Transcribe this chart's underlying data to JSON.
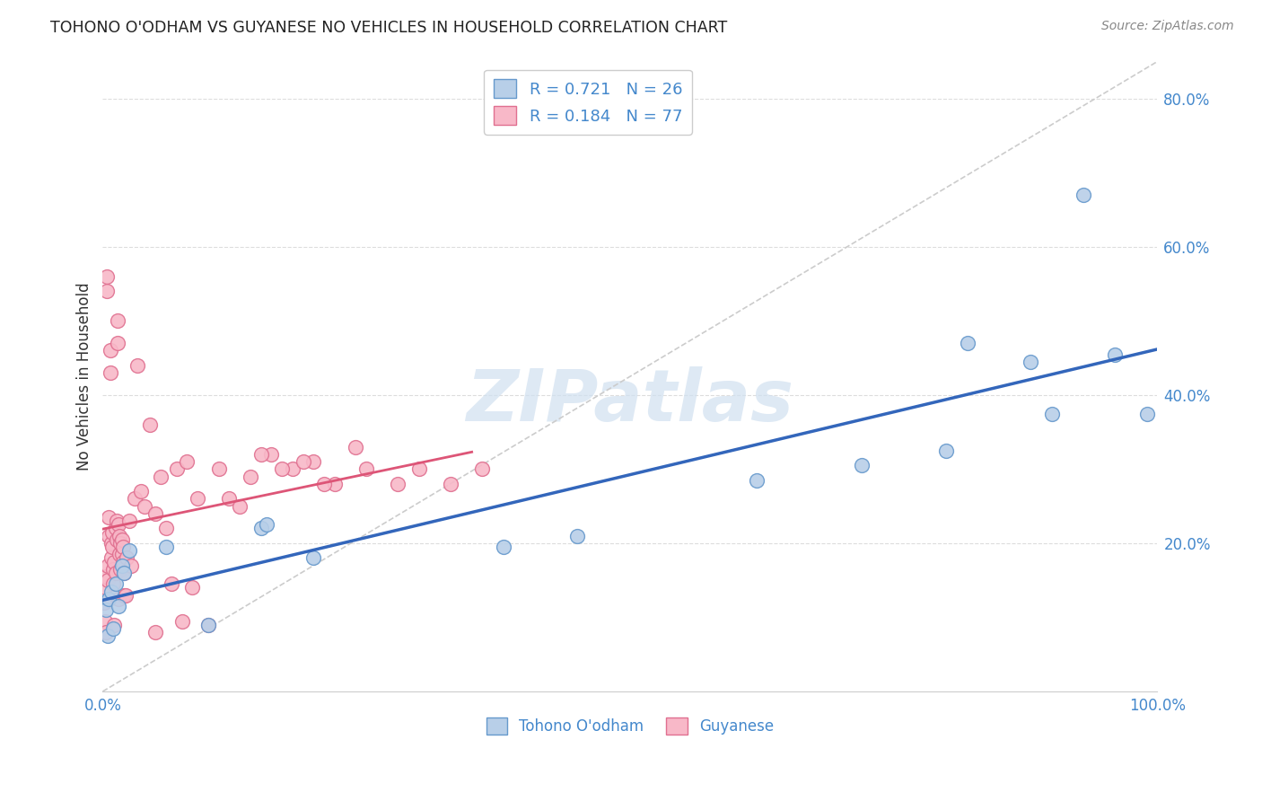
{
  "title": "TOHONO O'ODHAM VS GUYANESE NO VEHICLES IN HOUSEHOLD CORRELATION CHART",
  "source": "Source: ZipAtlas.com",
  "ylabel": "No Vehicles in Household",
  "xlim": [
    0.0,
    1.0
  ],
  "ylim": [
    0.0,
    0.85
  ],
  "xticks": [
    0.0,
    0.25,
    0.5,
    0.75,
    1.0
  ],
  "xtick_labels": [
    "0.0%",
    "",
    "",
    "",
    "100.0%"
  ],
  "yticks": [
    0.2,
    0.4,
    0.6,
    0.8
  ],
  "ytick_labels": [
    "20.0%",
    "40.0%",
    "60.0%",
    "80.0%"
  ],
  "background_color": "#ffffff",
  "grid_color": "#dddddd",
  "blue_scatter_face": "#b8cfe8",
  "blue_scatter_edge": "#6699cc",
  "pink_scatter_face": "#f8b8c8",
  "pink_scatter_edge": "#e07090",
  "blue_line_color": "#3366bb",
  "pink_line_color": "#dd5577",
  "diag_line_color": "#cccccc",
  "R_blue": 0.721,
  "N_blue": 26,
  "R_pink": 0.184,
  "N_pink": 77,
  "legend_label_blue": "Tohono O'odham",
  "legend_label_pink": "Guyanese",
  "title_color": "#222222",
  "tick_color": "#4488cc",
  "watermark_color": "#d0e0f0",
  "tohono_x": [
    0.003,
    0.005,
    0.006,
    0.008,
    0.01,
    0.012,
    0.015,
    0.018,
    0.02,
    0.025,
    0.06,
    0.1,
    0.15,
    0.155,
    0.2,
    0.45,
    0.62,
    0.72,
    0.8,
    0.82,
    0.88,
    0.9,
    0.93,
    0.96,
    0.99,
    0.38
  ],
  "tohono_y": [
    0.11,
    0.075,
    0.125,
    0.135,
    0.085,
    0.145,
    0.115,
    0.17,
    0.16,
    0.19,
    0.195,
    0.09,
    0.22,
    0.225,
    0.18,
    0.21,
    0.285,
    0.305,
    0.325,
    0.47,
    0.445,
    0.375,
    0.67,
    0.455,
    0.375,
    0.195
  ],
  "guyanese_x": [
    0.001,
    0.002,
    0.002,
    0.003,
    0.003,
    0.004,
    0.004,
    0.005,
    0.005,
    0.006,
    0.006,
    0.007,
    0.007,
    0.008,
    0.008,
    0.009,
    0.009,
    0.01,
    0.01,
    0.011,
    0.011,
    0.012,
    0.012,
    0.013,
    0.013,
    0.014,
    0.014,
    0.015,
    0.015,
    0.016,
    0.016,
    0.017,
    0.017,
    0.018,
    0.018,
    0.019,
    0.019,
    0.02,
    0.02,
    0.022,
    0.023,
    0.025,
    0.027,
    0.03,
    0.033,
    0.036,
    0.04,
    0.045,
    0.05,
    0.055,
    0.06,
    0.07,
    0.08,
    0.09,
    0.1,
    0.11,
    0.12,
    0.13,
    0.14,
    0.16,
    0.18,
    0.2,
    0.22,
    0.24,
    0.15,
    0.17,
    0.19,
    0.21,
    0.25,
    0.28,
    0.3,
    0.33,
    0.36,
    0.05,
    0.065,
    0.075,
    0.085
  ],
  "guyanese_y": [
    0.12,
    0.095,
    0.14,
    0.08,
    0.155,
    0.54,
    0.56,
    0.15,
    0.17,
    0.21,
    0.235,
    0.43,
    0.46,
    0.18,
    0.2,
    0.215,
    0.195,
    0.145,
    0.165,
    0.09,
    0.175,
    0.16,
    0.22,
    0.205,
    0.23,
    0.5,
    0.47,
    0.125,
    0.225,
    0.185,
    0.21,
    0.2,
    0.165,
    0.185,
    0.205,
    0.195,
    0.175,
    0.16,
    0.13,
    0.13,
    0.18,
    0.23,
    0.17,
    0.26,
    0.44,
    0.27,
    0.25,
    0.36,
    0.24,
    0.29,
    0.22,
    0.3,
    0.31,
    0.26,
    0.09,
    0.3,
    0.26,
    0.25,
    0.29,
    0.32,
    0.3,
    0.31,
    0.28,
    0.33,
    0.32,
    0.3,
    0.31,
    0.28,
    0.3,
    0.28,
    0.3,
    0.28,
    0.3,
    0.08,
    0.145,
    0.095,
    0.14
  ],
  "pink_line_x_end": 0.35
}
